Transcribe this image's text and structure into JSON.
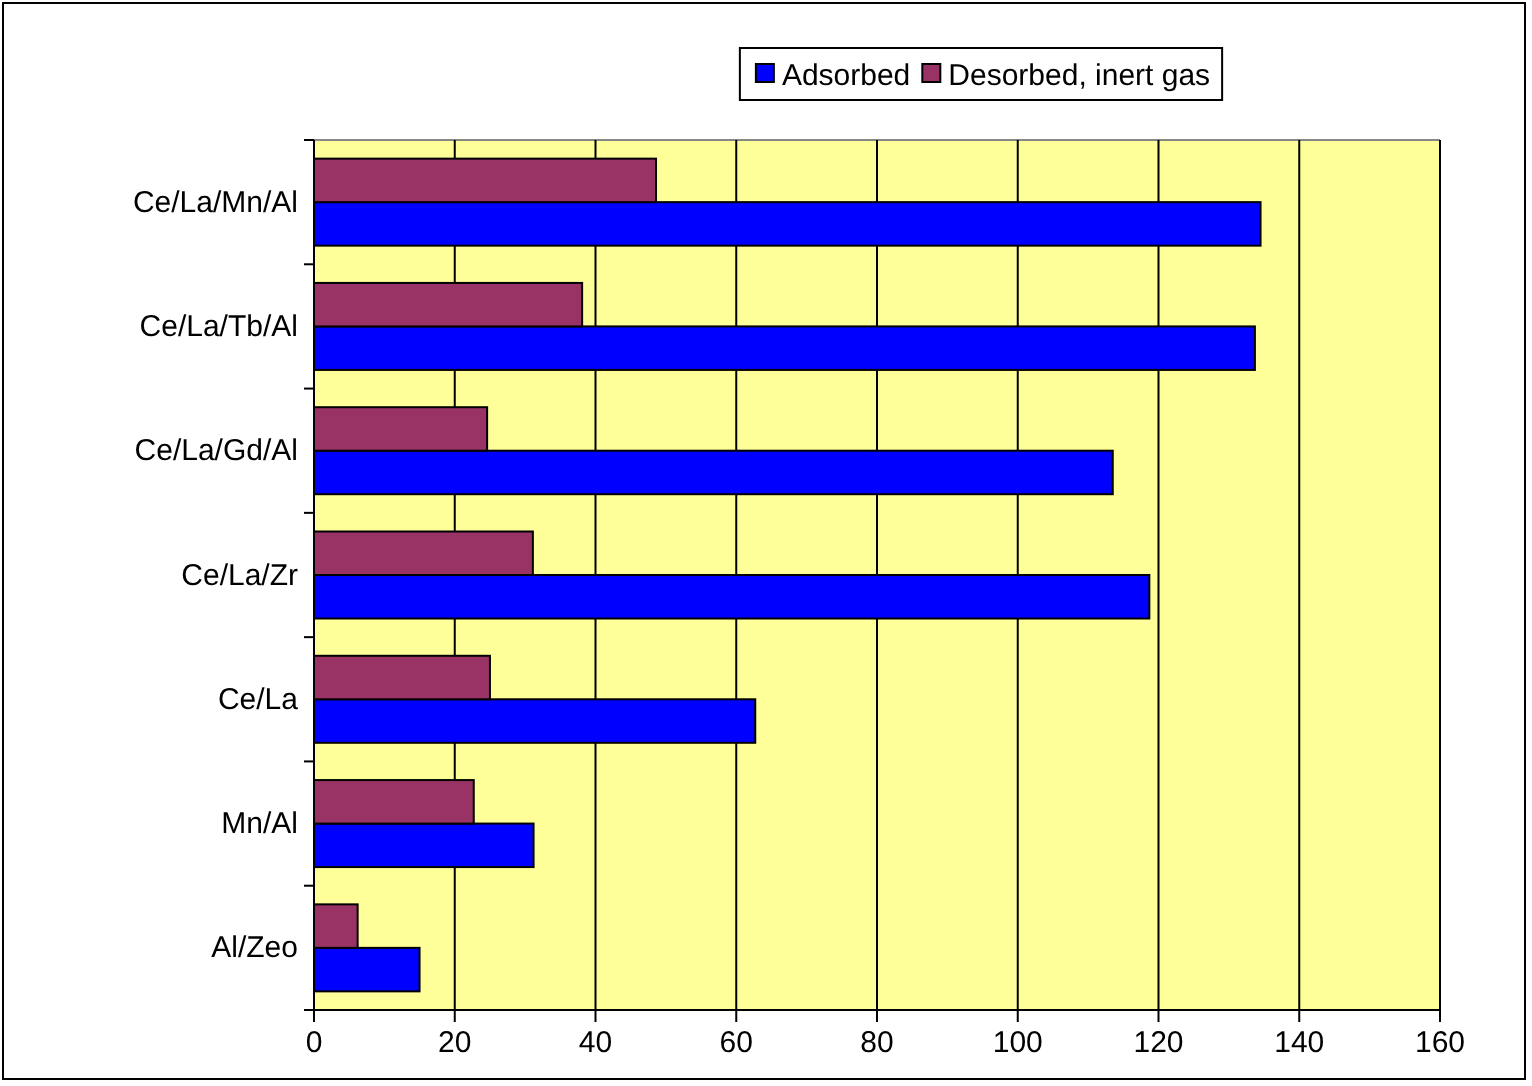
{
  "chart_data": {
    "type": "bar",
    "orientation": "horizontal",
    "categories": [
      "Ce/La/Mn/Al",
      "Ce/La/Tb/Al",
      "Ce/La/Gd/Al",
      "Ce/La/Zr",
      "Ce/La",
      "Mn/Al",
      "Al/Zeo"
    ],
    "series": [
      {
        "name": "Adsorbed",
        "color": "#0000ff",
        "values": [
          134.5,
          133.7,
          113.5,
          118.7,
          62.7,
          31.2,
          15.0
        ]
      },
      {
        "name": "Desorbed, inert gas",
        "color": "#993366",
        "values": [
          48.6,
          38.1,
          24.6,
          31.1,
          25.0,
          22.7,
          6.2
        ]
      }
    ],
    "xlim": [
      0,
      160
    ],
    "xticks": [
      0,
      20,
      40,
      60,
      80,
      100,
      120,
      140,
      160
    ],
    "grid": "x",
    "legend": "top"
  }
}
